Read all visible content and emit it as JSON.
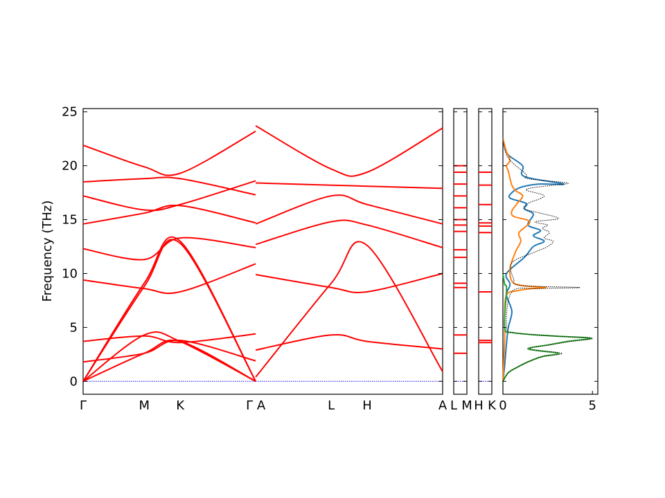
{
  "chart_data": [
    {
      "type": "line",
      "title": "",
      "xlabel": "",
      "ylabel": "Frequency (THz)",
      "ylim": [
        -1.2,
        25.3
      ],
      "yticks": [
        0,
        5,
        10,
        15,
        20,
        25
      ],
      "k_labels": [
        "Γ",
        "M",
        "K",
        "Γ",
        "A",
        "L",
        "H",
        "A"
      ],
      "k_labels_display": [
        "Γ",
        "M",
        "K",
        "Γ A",
        "L",
        "H",
        "A"
      ],
      "line_color": "#ff0000",
      "zero_line_color": "#0000ff",
      "grid": false,
      "description": "Phonon band structure along Γ-M-K-Γ | A-L-H-A",
      "bands_segment_Gamma_M_K_Gamma": [
        {
          "x": [
            0,
            0.17,
            0.27,
            0.48
          ],
          "y": [
            0,
            9.1,
            13.0,
            0
          ]
        },
        {
          "x": [
            0,
            0.17,
            0.27,
            0.48
          ],
          "y": [
            0,
            8.8,
            12.8,
            0
          ]
        },
        {
          "x": [
            0,
            0.17,
            0.27,
            0.48
          ],
          "y": [
            0,
            4.3,
            3.7,
            0
          ]
        },
        {
          "x": [
            0,
            0.17,
            0.27,
            0.48
          ],
          "y": [
            0,
            2.6,
            3.7,
            0
          ]
        },
        {
          "x": [
            0,
            0.17,
            0.27,
            0.48
          ],
          "y": [
            1.8,
            2.6,
            3.8,
            1.9
          ]
        },
        {
          "x": [
            0,
            0.17,
            0.27,
            0.48
          ],
          "y": [
            3.7,
            4.2,
            3.6,
            4.4
          ]
        },
        {
          "x": [
            0,
            0.17,
            0.27,
            0.48
          ],
          "y": [
            9.4,
            8.6,
            8.3,
            10.9
          ]
        },
        {
          "x": [
            0,
            0.17,
            0.27,
            0.48
          ],
          "y": [
            12.3,
            11.3,
            13.3,
            12.4
          ]
        },
        {
          "x": [
            0,
            0.17,
            0.27,
            0.48
          ],
          "y": [
            14.6,
            15.6,
            16.3,
            14.7
          ]
        },
        {
          "x": [
            0,
            0.17,
            0.27,
            0.48
          ],
          "y": [
            17.2,
            15.9,
            16.4,
            18.6
          ]
        },
        {
          "x": [
            0,
            0.17,
            0.27,
            0.48
          ],
          "y": [
            18.5,
            18.8,
            18.8,
            17.3
          ]
        },
        {
          "x": [
            0,
            0.17,
            0.27,
            0.48
          ],
          "y": [
            21.9,
            19.9,
            19.3,
            23.2
          ]
        }
      ],
      "bands_segment_A_L_H_A": [
        {
          "x": [
            0.48,
            0.69,
            0.79,
            1.0
          ],
          "y": [
            0.4,
            9.1,
            12.6,
            0.9
          ]
        },
        {
          "x": [
            0.48,
            0.69,
            0.79,
            1.0
          ],
          "y": [
            2.9,
            4.3,
            3.7,
            3.0
          ]
        },
        {
          "x": [
            0.48,
            0.69,
            0.79,
            1.0
          ],
          "y": [
            9.9,
            8.7,
            8.3,
            10.0
          ]
        },
        {
          "x": [
            0.48,
            0.69,
            0.79,
            1.0
          ],
          "y": [
            12.7,
            14.8,
            14.5,
            12.4
          ]
        },
        {
          "x": [
            0.48,
            0.69,
            0.79,
            1.0
          ],
          "y": [
            14.6,
            17.2,
            16.4,
            14.6
          ]
        },
        {
          "x": [
            0.48,
            0.69,
            0.79,
            1.0
          ],
          "y": [
            18.4,
            18.2,
            18.1,
            17.9
          ]
        },
        {
          "x": [
            0.48,
            0.69,
            0.79,
            1.0
          ],
          "y": [
            23.7,
            19.7,
            19.4,
            23.5
          ]
        }
      ]
    },
    {
      "type": "line",
      "title": "",
      "k_labels": [
        "L",
        "M"
      ],
      "line_color": "#ff0000",
      "flat_bands_y": [
        2.6,
        4.3,
        8.7,
        9.1,
        11.5,
        12.2,
        13.9,
        14.5,
        15.0,
        16.1,
        17.2,
        18.3,
        19.4,
        20.0
      ]
    },
    {
      "type": "line",
      "title": "",
      "k_labels": [
        "H",
        "K"
      ],
      "line_color": "#ff0000",
      "flat_bands_y": [
        3.6,
        3.8,
        8.3,
        13.8,
        14.4,
        14.7,
        16.4,
        18.2,
        19.4
      ]
    },
    {
      "type": "line",
      "title": "",
      "xlabel": "",
      "ylabel": "",
      "xlim": [
        0,
        5.3
      ],
      "xticks": [
        0,
        5
      ],
      "description": "Phonon density of states (total + partial)",
      "series": [
        {
          "color": "#1f77b4",
          "style": "solid",
          "x": [
            0,
            0.1,
            0.2,
            0.3,
            0.5,
            0.2,
            0.4,
            0.2,
            1.2,
            1.7,
            2.3,
            1.7,
            2.1,
            1.4,
            1.7,
            1.2,
            1.3,
            0.4,
            0.5,
            1.0,
            2.0,
            3.4,
            1.2,
            1.1,
            0.3,
            0.1,
            0
          ],
          "y": [
            0,
            1.5,
            3.5,
            5,
            6.5,
            8,
            9,
            10,
            11.5,
            12.5,
            13,
            13.5,
            14,
            14.5,
            15.5,
            16,
            16.5,
            17,
            17.5,
            18,
            18.3,
            18.3,
            19,
            20,
            21,
            21.8,
            22.5
          ]
        },
        {
          "color": "#ff7f0e",
          "style": "solid",
          "x": [
            0,
            0.05,
            0.1,
            0.1,
            0.2,
            0.8,
            1.6,
            2.4,
            1.0,
            0.5,
            0.4,
            0.7,
            1.0,
            0.9,
            1.5,
            0.6,
            0.5,
            0.8,
            1.1,
            0.7,
            0.5,
            0.4,
            0.3,
            0.2,
            0.4,
            0.2,
            0
          ],
          "y": [
            0,
            2,
            4,
            6,
            8,
            8.4,
            8.6,
            8.7,
            8.9,
            9.3,
            10.5,
            12,
            13,
            13.8,
            14.8,
            15.3,
            15.8,
            16.5,
            17.2,
            17.7,
            18.2,
            18.8,
            19.5,
            20,
            20.5,
            21.3,
            22.5
          ]
        },
        {
          "color": "#2ca02c",
          "style": "solid",
          "x": [
            0,
            0.3,
            0.8,
            1.4,
            2.2,
            3.1,
            1.4,
            2.6,
            3.6,
            4.9,
            2.8,
            0.6,
            0.1,
            0.2,
            0.1,
            0
          ],
          "y": [
            0,
            0.8,
            1.3,
            1.8,
            2.3,
            2.6,
            3.0,
            3.4,
            3.7,
            4.0,
            4.2,
            4.5,
            5.0,
            8.5,
            9.0,
            10
          ]
        },
        {
          "color": "#000000",
          "style": "dotted",
          "x": [
            0,
            0.3,
            0.8,
            1.4,
            2.2,
            3.3,
            1.5,
            2.7,
            3.8,
            5.0,
            2.9,
            0.7,
            0.2,
            0.5,
            2.0,
            4.3,
            1.0,
            0.6,
            0.5,
            1.8,
            2.5,
            2.8,
            2.3,
            2.6,
            2.2,
            2.5,
            1.8,
            3.1,
            2.1,
            1.2,
            1.4,
            2.3,
            1.3,
            2.8,
            3.6,
            1.4,
            1.3,
            0.4,
            0.1,
            0
          ],
          "y": [
            0,
            0.8,
            1.3,
            1.8,
            2.3,
            2.6,
            3.0,
            3.4,
            3.7,
            4.0,
            4.2,
            4.5,
            5.0,
            8.3,
            8.6,
            8.7,
            8.9,
            9.5,
            11.0,
            12.0,
            12.5,
            13.0,
            13.3,
            13.8,
            14.2,
            14.5,
            14.8,
            15.1,
            15.6,
            16.0,
            16.5,
            17.2,
            17.8,
            18.2,
            18.4,
            18.8,
            19.2,
            20.5,
            21.5,
            22.5
          ]
        }
      ]
    }
  ]
}
